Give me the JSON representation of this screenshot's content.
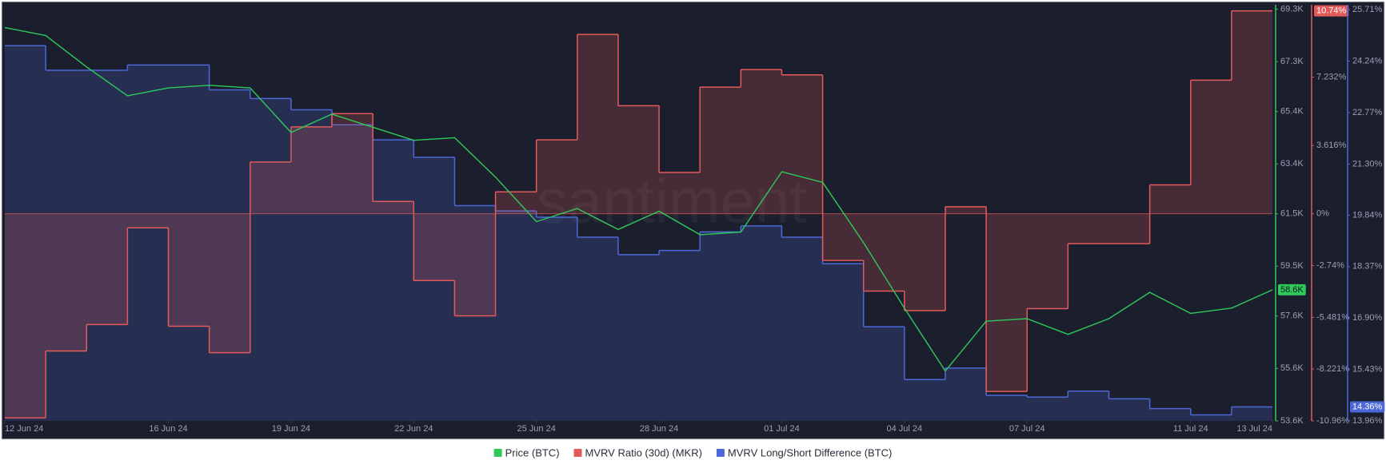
{
  "chart_data": {
    "type": "line-step",
    "watermark": "santiment",
    "x": [
      "2024-06-12",
      "2024-06-13",
      "2024-06-14",
      "2024-06-15",
      "2024-06-16",
      "2024-06-17",
      "2024-06-18",
      "2024-06-19",
      "2024-06-20",
      "2024-06-21",
      "2024-06-22",
      "2024-06-23",
      "2024-06-24",
      "2024-06-25",
      "2024-06-26",
      "2024-06-27",
      "2024-06-28",
      "2024-06-29",
      "2024-06-30",
      "2024-07-01",
      "2024-07-02",
      "2024-07-03",
      "2024-07-04",
      "2024-07-05",
      "2024-07-06",
      "2024-07-07",
      "2024-07-08",
      "2024-07-09",
      "2024-07-10",
      "2024-07-11",
      "2024-07-12",
      "2024-07-13"
    ],
    "xlim": [
      "2024-06-12",
      "2024-07-13"
    ],
    "xticks": [
      {
        "value": "2024-06-12",
        "label": "12 Jun 24"
      },
      {
        "value": "2024-06-16",
        "label": "16 Jun 24"
      },
      {
        "value": "2024-06-19",
        "label": "19 Jun 24"
      },
      {
        "value": "2024-06-22",
        "label": "22 Jun 24"
      },
      {
        "value": "2024-06-25",
        "label": "25 Jun 24"
      },
      {
        "value": "2024-06-28",
        "label": "28 Jun 24"
      },
      {
        "value": "2024-07-01",
        "label": "01 Jul 24"
      },
      {
        "value": "2024-07-04",
        "label": "04 Jul 24"
      },
      {
        "value": "2024-07-07",
        "label": "07 Jul 24"
      },
      {
        "value": "2024-07-11",
        "label": "11 Jul 24"
      },
      {
        "value": "2024-07-13",
        "label": "13 Jul 24"
      }
    ],
    "ylim": [
      53600,
      69470
    ],
    "yticks": [
      {
        "value": 69300,
        "label": "69.3K"
      },
      {
        "value": 67300,
        "label": "67.3K"
      },
      {
        "value": 65400,
        "label": "65.4K"
      },
      {
        "value": 63400,
        "label": "63.4K"
      },
      {
        "value": 61500,
        "label": "61.5K"
      },
      {
        "value": 59500,
        "label": "59.5K"
      },
      {
        "value": 57600,
        "label": "57.6K"
      },
      {
        "value": 55600,
        "label": "55.6K"
      },
      {
        "value": 53600,
        "label": "53.6K"
      }
    ],
    "y2lim": [
      -10.96,
      11.06
    ],
    "y2ticks": [
      {
        "value": 7.232,
        "label": "7.232%"
      },
      {
        "value": 3.616,
        "label": "3.616%"
      },
      {
        "value": 0,
        "label": "0%"
      },
      {
        "value": -2.74,
        "label": "-2.74%"
      },
      {
        "value": -5.481,
        "label": "-5.481%"
      },
      {
        "value": -8.221,
        "label": "-8.221%"
      },
      {
        "value": -10.96,
        "label": "-10.96%"
      }
    ],
    "y3lim": [
      13.96,
      25.85
    ],
    "y3ticks": [
      {
        "value": 25.71,
        "label": "25.71%"
      },
      {
        "value": 24.24,
        "label": "24.24%"
      },
      {
        "value": 22.77,
        "label": "22.77%"
      },
      {
        "value": 21.3,
        "label": "21.30%"
      },
      {
        "value": 19.84,
        "label": "19.84%"
      },
      {
        "value": 18.37,
        "label": "18.37%"
      },
      {
        "value": 16.9,
        "label": "16.90%"
      },
      {
        "value": 15.43,
        "label": "15.43%"
      },
      {
        "value": 13.96,
        "label": "13.96%"
      }
    ],
    "grid": false,
    "legend": "bottom",
    "series": [
      {
        "name": "Price (BTC)",
        "color": "#2fc95a",
        "style": "line",
        "axis": "y",
        "last_value_label": "58.6K",
        "values": [
          68600,
          68300,
          67100,
          66000,
          66300,
          66400,
          66300,
          64600,
          65300,
          64800,
          64300,
          64400,
          62900,
          61200,
          61700,
          60900,
          61600,
          60700,
          60800,
          63100,
          62700,
          60400,
          57900,
          55500,
          57400,
          57500,
          56900,
          57500,
          58500,
          57700,
          57900,
          58600
        ]
      },
      {
        "name": "MVRV Ratio (30d) (MKR)",
        "color": "#e25a5a",
        "style": "step-area-zero",
        "axis": "y2",
        "last_value_label": "10.74%",
        "values": [
          -10.8,
          -7.26,
          -5.86,
          -0.74,
          -5.95,
          -7.35,
          2.74,
          4.6,
          5.3,
          0.65,
          -3.53,
          -5.4,
          1.16,
          3.91,
          9.49,
          5.72,
          2.19,
          6.7,
          7.63,
          7.35,
          -2.47,
          -4.09,
          -5.12,
          0.37,
          -9.4,
          -5.02,
          -1.58,
          -1.58,
          1.53,
          7.07,
          10.74,
          10.74
        ]
      },
      {
        "name": "MVRV Long/Short Difference (BTC)",
        "color": "#4c68d8",
        "style": "step-area-bottom",
        "axis": "y3",
        "last_value_label": "14.36%",
        "values": [
          24.68,
          23.98,
          23.98,
          24.13,
          24.13,
          23.42,
          23.17,
          22.85,
          22.42,
          21.99,
          21.49,
          20.11,
          19.96,
          19.78,
          19.21,
          18.71,
          18.83,
          19.36,
          19.53,
          19.21,
          18.45,
          16.65,
          15.14,
          15.47,
          14.69,
          14.64,
          14.81,
          14.59,
          14.31,
          14.13,
          14.36,
          14.36
        ]
      }
    ]
  }
}
